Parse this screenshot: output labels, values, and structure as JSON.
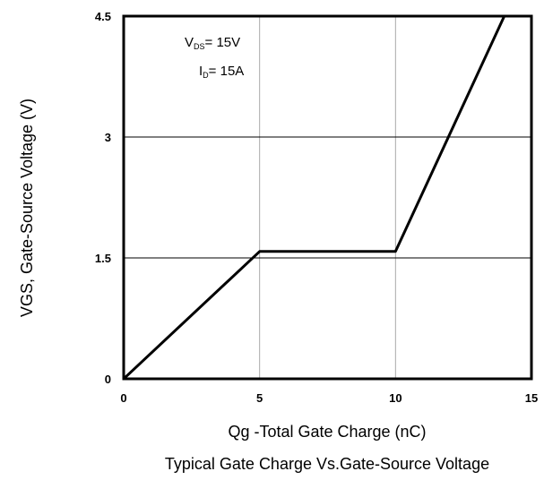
{
  "chart_data": {
    "type": "line",
    "xlabel": "Qg -Total Gate Charge (nC)",
    "ylabel": "VGS, Gate-Source Voltage (V)",
    "caption": "Typical Gate Charge Vs.Gate-Source Voltage",
    "xlim": [
      0,
      15
    ],
    "ylim": [
      0,
      4.5
    ],
    "x_ticks": [
      "0",
      "5",
      "10",
      "15"
    ],
    "y_ticks": [
      "0",
      "1.5",
      "3",
      "4.5"
    ],
    "grid": true,
    "series": [
      {
        "x": [
          0,
          5,
          10,
          14
        ],
        "y": [
          0,
          1.58,
          1.58,
          4.5
        ]
      }
    ],
    "annotations": [
      {
        "main": "V",
        "sub": "DS",
        "rest": "= 15V"
      },
      {
        "main": "I",
        "sub": "D",
        "rest": "= 15A"
      }
    ],
    "colors": {
      "line": "#000000",
      "grid": "#aaaaaa",
      "frame": "#000000"
    }
  }
}
